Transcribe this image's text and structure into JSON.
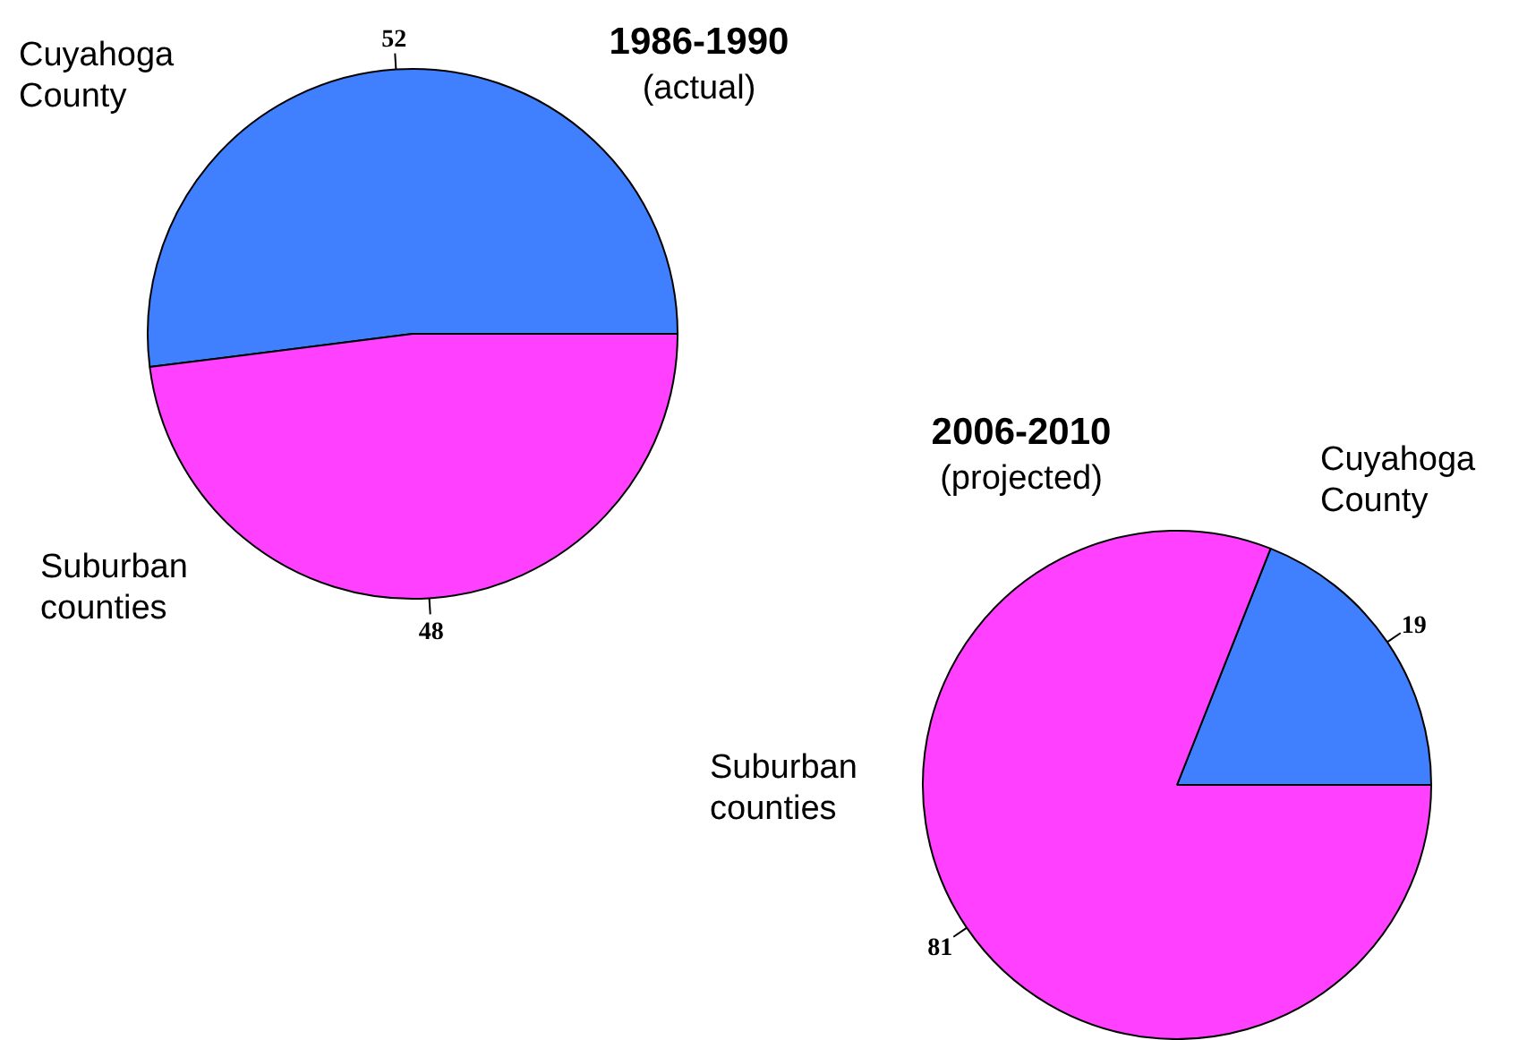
{
  "chart_data": [
    {
      "type": "pie",
      "title": "1986-1990",
      "subtitle": "(actual)",
      "categories": [
        "Cuyahoga County",
        "Suburban counties"
      ],
      "values": [
        52,
        48
      ],
      "colors": [
        "#4080ff",
        "#ff40ff"
      ],
      "data_labels": true
    },
    {
      "type": "pie",
      "title": "2006-2010",
      "subtitle": "(projected)",
      "categories": [
        "Cuyahoga County",
        "Suburban counties"
      ],
      "values": [
        19,
        81
      ],
      "colors": [
        "#4080ff",
        "#ff40ff"
      ],
      "data_labels": true
    }
  ]
}
